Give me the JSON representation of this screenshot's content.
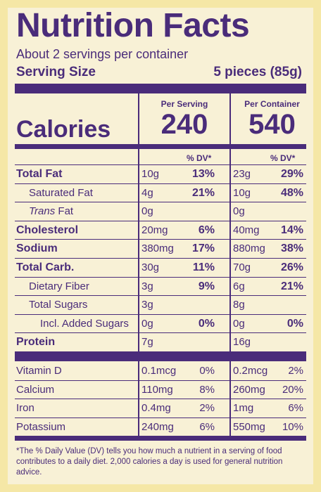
{
  "title": "Nutrition Facts",
  "servings_per_container": "About 2 servings per container",
  "serving_size_label": "Serving Size",
  "serving_size_value": "5 pieces (85g)",
  "per_serving_label": "Per Serving",
  "per_container_label": "Per Container",
  "calories_label": "Calories",
  "calories_per_serving": "240",
  "calories_per_container": "540",
  "dv_label": "% DV*",
  "nutrients": [
    {
      "name": "Total Fat",
      "style": "bold",
      "s_amt": "10g",
      "s_dv": "13%",
      "c_amt": "23g",
      "c_dv": "29%"
    },
    {
      "name": "Saturated Fat",
      "style": "indent",
      "s_amt": "4g",
      "s_dv": "21%",
      "c_amt": "10g",
      "c_dv": "48%"
    },
    {
      "name_italic": "Trans",
      "name_rest": " Fat",
      "style": "indent-trans",
      "s_amt": "0g",
      "s_dv": "",
      "c_amt": "0g",
      "c_dv": ""
    },
    {
      "name": "Cholesterol",
      "style": "bold",
      "s_amt": "20mg",
      "s_dv": "6%",
      "c_amt": "40mg",
      "c_dv": "14%"
    },
    {
      "name": "Sodium",
      "style": "bold",
      "s_amt": "380mg",
      "s_dv": "17%",
      "c_amt": "880mg",
      "c_dv": "38%"
    },
    {
      "name": "Total Carb.",
      "style": "bold",
      "s_amt": "30g",
      "s_dv": "11%",
      "c_amt": "70g",
      "c_dv": "26%"
    },
    {
      "name": "Dietary Fiber",
      "style": "indent",
      "s_amt": "3g",
      "s_dv": "9%",
      "c_amt": "6g",
      "c_dv": "21%"
    },
    {
      "name": "Total Sugars",
      "style": "indent",
      "s_amt": "3g",
      "s_dv": "",
      "c_amt": "8g",
      "c_dv": ""
    },
    {
      "name": "Incl. Added Sugars",
      "style": "indent2",
      "s_amt": "0g",
      "s_dv": "0%",
      "c_amt": "0g",
      "c_dv": "0%"
    },
    {
      "name": "Protein",
      "style": "bold",
      "s_amt": "7g",
      "s_dv": "",
      "c_amt": "16g",
      "c_dv": ""
    }
  ],
  "vitamins": [
    {
      "name": "Vitamin D",
      "s_amt": "0.1mcg",
      "s_dv": "0%",
      "c_amt": "0.2mcg",
      "c_dv": "2%"
    },
    {
      "name": "Calcium",
      "s_amt": "110mg",
      "s_dv": "8%",
      "c_amt": "260mg",
      "c_dv": "20%"
    },
    {
      "name": "Iron",
      "s_amt": "0.4mg",
      "s_dv": "2%",
      "c_amt": "1mg",
      "c_dv": "6%"
    },
    {
      "name": "Potassium",
      "s_amt": "240mg",
      "s_dv": "6%",
      "c_amt": "550mg",
      "c_dv": "10%"
    }
  ],
  "footnote": "*The % Daily Value (DV) tells you how much a nutrient in a serving of food contributes to a daily diet. 2,000 calories a day is used for general nutrition advice.",
  "colors": {
    "ink": "#4a2c7a",
    "label_bg": "#f8f1d6",
    "frame": "#f5e7a6"
  }
}
